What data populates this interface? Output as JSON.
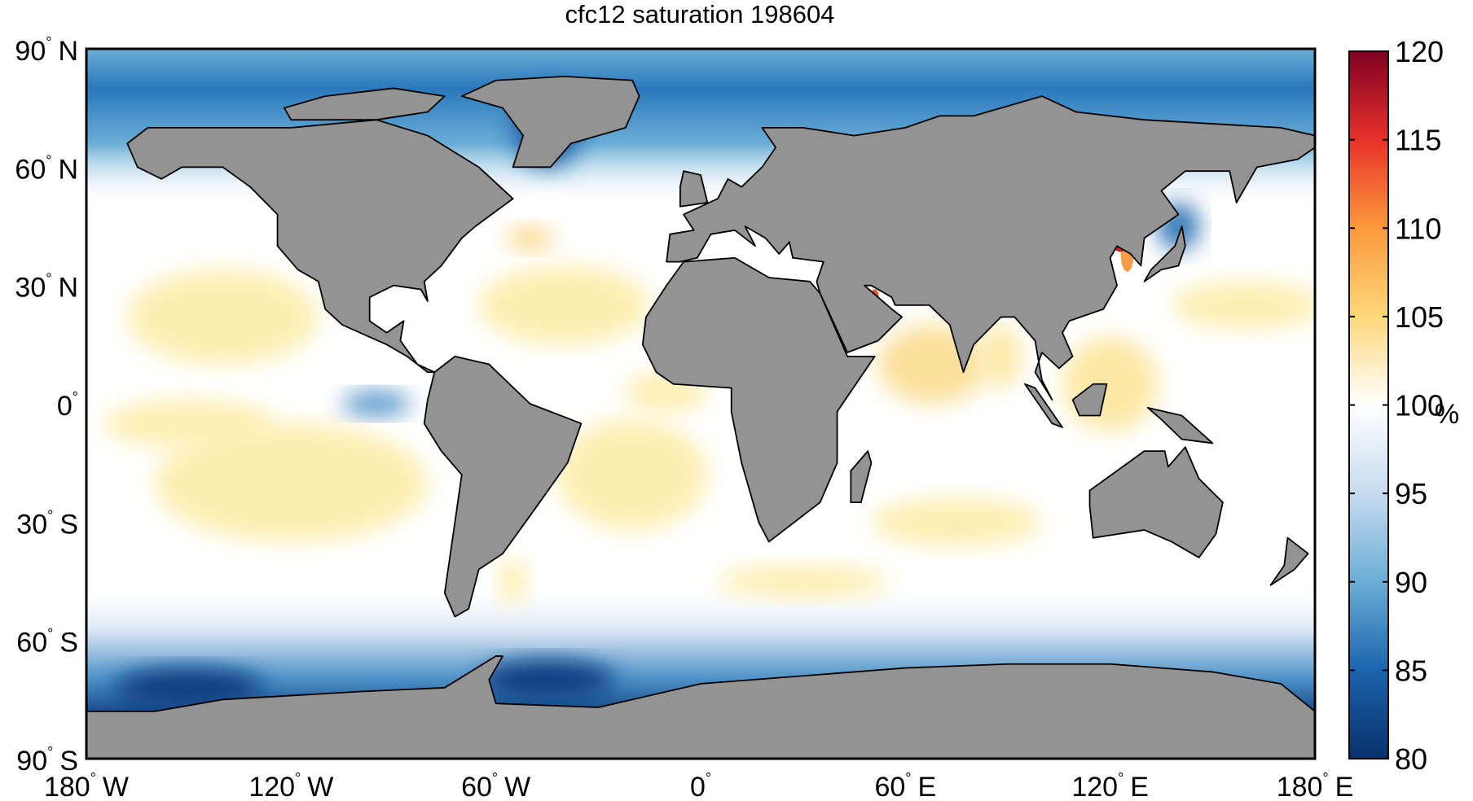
{
  "chart_data": {
    "type": "heatmap",
    "title": "cfc12 saturation 198604",
    "projection": "equirectangular",
    "x_ticks": [
      {
        "value": -180,
        "num": "180",
        "hemi": "W"
      },
      {
        "value": -120,
        "num": "120",
        "hemi": "W"
      },
      {
        "value": -60,
        "num": "60",
        "hemi": "W"
      },
      {
        "value": 0,
        "num": "0",
        "hemi": ""
      },
      {
        "value": 60,
        "num": "60",
        "hemi": "E"
      },
      {
        "value": 120,
        "num": "120",
        "hemi": "E"
      },
      {
        "value": 180,
        "num": "180",
        "hemi": "E"
      }
    ],
    "y_ticks": [
      {
        "value": 90,
        "num": "90",
        "hemi": "N"
      },
      {
        "value": 60,
        "num": "60",
        "hemi": "N"
      },
      {
        "value": 30,
        "num": "30",
        "hemi": "N"
      },
      {
        "value": 0,
        "num": "0",
        "hemi": ""
      },
      {
        "value": -30,
        "num": "30",
        "hemi": "S"
      },
      {
        "value": -60,
        "num": "60",
        "hemi": "S"
      },
      {
        "value": -90,
        "num": "90",
        "hemi": "S"
      }
    ],
    "degree_symbol": "°",
    "xlim": [
      -180,
      180
    ],
    "ylim": [
      -90,
      90
    ],
    "colorbar": {
      "label": "%",
      "range": [
        80,
        120
      ],
      "ticks": [
        "80",
        "85",
        "90",
        "95",
        "100",
        "105",
        "110",
        "115",
        "120"
      ],
      "tick_values": [
        80,
        85,
        90,
        95,
        100,
        105,
        110,
        115,
        120
      ],
      "colormap": "blue-white-red diverging",
      "colors": {
        "80": "#08306b",
        "85": "#1c64ad",
        "90": "#6baed6",
        "95": "#c6dbef",
        "100": "#ffffff",
        "105": "#fdd77a",
        "110": "#fb9a3c",
        "115": "#e8312a",
        "120": "#7f0022"
      }
    },
    "land_color": "#939393"
  }
}
